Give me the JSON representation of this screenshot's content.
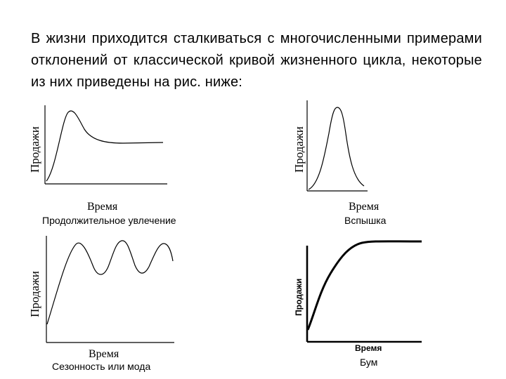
{
  "intro_text": "В жизни приходится сталкиваться с многочисленными примерами отклонений от классической кривой жизненного цикла, некоторые из них приведены на рис. ниже:",
  "panels": [
    {
      "ylabel": "Продажи",
      "xlabel": "Время",
      "caption": "Продолжительное увлечение"
    },
    {
      "ylabel": "Продажи",
      "xlabel": "Время",
      "caption": "Вспышка"
    },
    {
      "ylabel": "Продажи",
      "xlabel": "Время",
      "caption": "Сезонность или мода"
    },
    {
      "ylabel": "Продажи",
      "xlabel": "Время",
      "caption": "Бум"
    }
  ],
  "colors": {
    "line": "#000000"
  }
}
